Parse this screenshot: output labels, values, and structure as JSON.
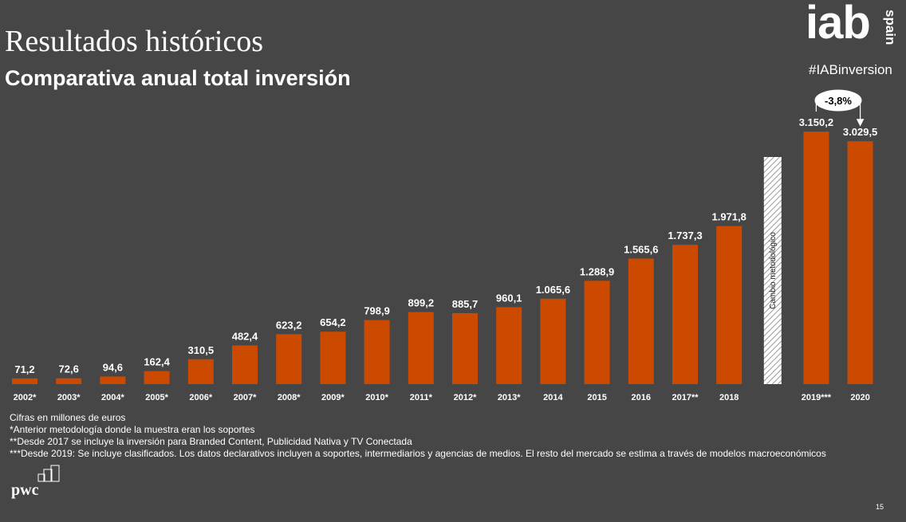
{
  "title": "Resultados históricos",
  "subtitle": "Comparativa anual total inversión",
  "logo": {
    "main": "iab",
    "suffix": "spain",
    "hashtag": "#IABinversion"
  },
  "chart_data": {
    "type": "bar",
    "title": "Comparativa anual total inversión",
    "units": "millones de euros",
    "bar_color": "#CC4A00",
    "label_color": "#FFFFFF",
    "categories": [
      "2002*",
      "2003*",
      "2004*",
      "2005*",
      "2006*",
      "2007*",
      "2008*",
      "2009*",
      "2010*",
      "2011*",
      "2012*",
      "2013*",
      "2014",
      "2015",
      "2016",
      "2017**",
      "2018",
      "2019***",
      "2020"
    ],
    "values": [
      71.2,
      72.6,
      94.6,
      162.4,
      310.5,
      482.4,
      623.2,
      654.2,
      798.9,
      899.2,
      885.7,
      960.1,
      1065.6,
      1288.9,
      1565.6,
      1737.3,
      1971.8,
      3150.2,
      3029.5
    ],
    "value_labels": [
      "71,2",
      "72,6",
      "94,6",
      "162,4",
      "310,5",
      "482,4",
      "623,2",
      "654,2",
      "798,9",
      "899,2",
      "885,7",
      "960,1",
      "1.065,6",
      "1.288,9",
      "1.565,6",
      "1.737,3",
      "1.971,8",
      "3.150,2",
      "3.029,5"
    ],
    "ylim": [
      0,
      3300
    ],
    "grid": false,
    "methodology_break": {
      "after_category": "2018",
      "label": "Cambio metodológico"
    },
    "annotation": {
      "text": "-3,8%",
      "from": "2019***",
      "to": "2020"
    }
  },
  "notes": [
    "Cifras en millones de euros",
    "*Anterior metodología donde la muestra eran los soportes",
    "**Desde 2017 se incluye la inversión para Branded Content, Publicidad Nativa y TV Conectada",
    "***Desde 2019: Se incluye clasificados. Los datos declarativos incluyen a soportes, intermediarios y agencias de medios. El resto del mercado se estima a través de modelos macroeconómicos"
  ],
  "footer": {
    "brand": "pwc",
    "page_number": "15"
  }
}
